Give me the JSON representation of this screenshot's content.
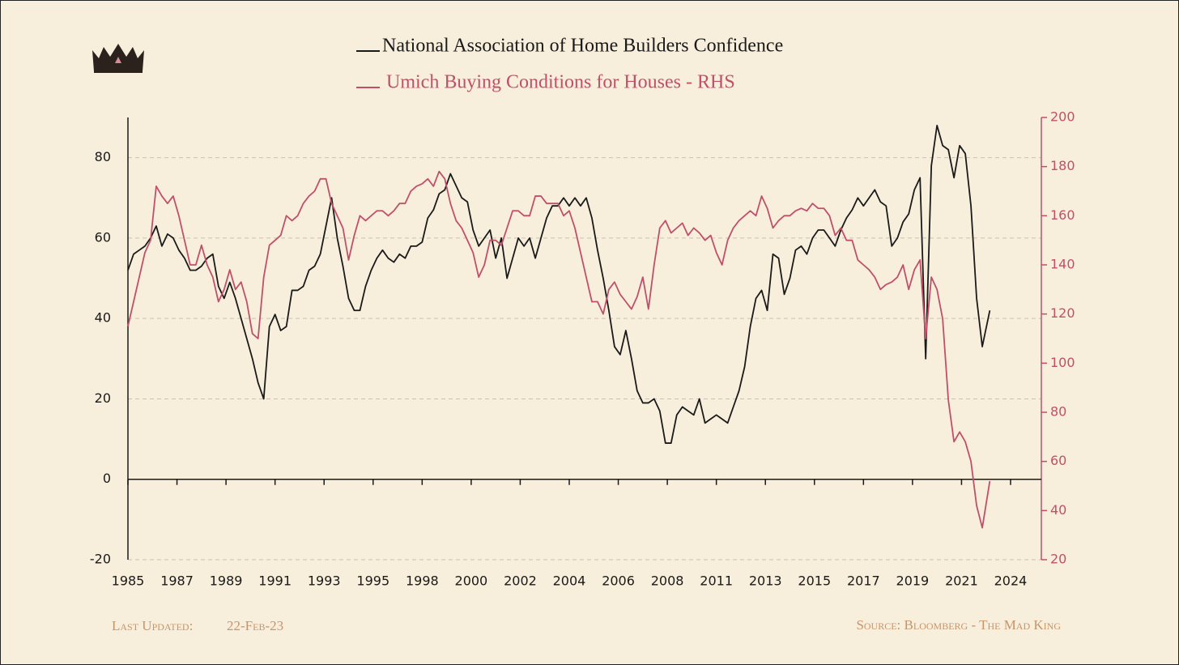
{
  "chart_data": {
    "type": "line",
    "x": [
      1985,
      1985.25,
      1985.5,
      1985.75,
      1986,
      1986.25,
      1986.5,
      1986.75,
      1987,
      1987.25,
      1987.5,
      1987.75,
      1988,
      1988.25,
      1988.5,
      1988.75,
      1989,
      1989.25,
      1989.5,
      1989.75,
      1990,
      1990.25,
      1990.5,
      1990.75,
      1991,
      1991.25,
      1991.5,
      1991.75,
      1992,
      1992.25,
      1992.5,
      1992.75,
      1993,
      1993.25,
      1993.5,
      1993.75,
      1994,
      1994.25,
      1994.5,
      1994.75,
      1995,
      1995.25,
      1995.5,
      1995.75,
      1996,
      1996.25,
      1996.5,
      1996.75,
      1997,
      1997.25,
      1997.5,
      1997.75,
      1998,
      1998.25,
      1998.5,
      1998.75,
      1999,
      1999.25,
      1999.5,
      1999.75,
      2000,
      2000.25,
      2000.5,
      2000.75,
      2001,
      2001.25,
      2001.5,
      2001.75,
      2002,
      2002.25,
      2002.5,
      2002.75,
      2003,
      2003.25,
      2003.5,
      2003.75,
      2004,
      2004.25,
      2004.5,
      2004.75,
      2005,
      2005.25,
      2005.5,
      2005.75,
      2006,
      2006.25,
      2006.5,
      2006.75,
      2007,
      2007.25,
      2007.5,
      2007.75,
      2008,
      2008.25,
      2008.5,
      2008.75,
      2009,
      2009.25,
      2009.5,
      2009.75,
      2010,
      2010.25,
      2010.5,
      2010.75,
      2011,
      2011.25,
      2011.5,
      2011.75,
      2012,
      2012.25,
      2012.5,
      2012.75,
      2013,
      2013.25,
      2013.5,
      2013.75,
      2014,
      2014.25,
      2014.5,
      2014.75,
      2015,
      2015.25,
      2015.5,
      2015.75,
      2016,
      2016.25,
      2016.5,
      2016.75,
      2017,
      2017.25,
      2017.5,
      2017.75,
      2018,
      2018.25,
      2018.5,
      2018.75,
      2019,
      2019.25,
      2019.5,
      2019.75,
      2020,
      2020.25,
      2020.5,
      2020.75,
      2021,
      2021.25,
      2021.5,
      2021.75,
      2022,
      2022.25,
      2022.5,
      2022.75,
      2023.083
    ],
    "series": [
      {
        "name": "National Association of Home Builders Confidence",
        "color": "#1a1a1a",
        "axis": "y",
        "values": [
          52,
          56,
          57,
          58,
          60,
          63,
          58,
          61,
          60,
          57,
          55,
          52,
          52,
          53,
          55,
          56,
          48,
          45,
          49,
          45,
          40,
          35,
          30,
          24,
          20,
          38,
          41,
          37,
          38,
          47,
          47,
          48,
          52,
          53,
          56,
          63,
          70,
          60,
          53,
          45,
          42,
          42,
          48,
          52,
          55,
          57,
          55,
          54,
          56,
          55,
          58,
          58,
          59,
          65,
          67,
          71,
          72,
          76,
          73,
          70,
          69,
          62,
          58,
          60,
          62,
          55,
          60,
          50,
          55,
          60,
          58,
          60,
          55,
          60,
          65,
          68,
          68,
          70,
          68,
          70,
          68,
          70,
          65,
          57,
          50,
          42,
          33,
          31,
          37,
          30,
          22,
          19,
          19,
          20,
          17,
          9,
          9,
          16,
          18,
          17,
          16,
          20,
          14,
          15,
          16,
          15,
          14,
          18,
          22,
          28,
          38,
          45,
          47,
          42,
          56,
          55,
          46,
          50,
          57,
          58,
          56,
          60,
          62,
          62,
          60,
          58,
          62,
          65,
          67,
          70,
          68,
          70,
          72,
          69,
          68,
          58,
          60,
          64,
          66,
          72,
          75,
          30,
          78,
          88,
          83,
          82,
          75,
          83,
          81,
          68,
          45,
          33,
          42
        ]
      },
      {
        "name": "Umich Buying Conditions for Houses - RHS",
        "color": "#c0506a",
        "axis": "y2",
        "values": [
          115,
          125,
          135,
          145,
          150,
          172,
          168,
          165,
          168,
          160,
          150,
          140,
          140,
          148,
          140,
          135,
          125,
          130,
          138,
          130,
          133,
          125,
          112,
          110,
          135,
          148,
          150,
          152,
          160,
          158,
          160,
          165,
          168,
          170,
          175,
          175,
          165,
          160,
          155,
          142,
          152,
          160,
          158,
          160,
          162,
          162,
          160,
          162,
          165,
          165,
          170,
          172,
          173,
          175,
          172,
          178,
          175,
          165,
          158,
          155,
          150,
          145,
          135,
          140,
          150,
          150,
          148,
          155,
          162,
          162,
          160,
          160,
          168,
          168,
          165,
          165,
          165,
          160,
          162,
          155,
          145,
          135,
          125,
          125,
          120,
          130,
          133,
          128,
          125,
          122,
          127,
          135,
          122,
          140,
          155,
          158,
          153,
          155,
          157,
          152,
          155,
          153,
          150,
          152,
          145,
          140,
          150,
          155,
          158,
          160,
          162,
          160,
          168,
          163,
          155,
          158,
          160,
          160,
          162,
          163,
          162,
          165,
          163,
          163,
          160,
          152,
          155,
          150,
          150,
          142,
          140,
          138,
          135,
          130,
          132,
          133,
          135,
          140,
          130,
          138,
          142,
          110,
          135,
          130,
          118,
          85,
          68,
          72,
          68,
          60,
          42,
          33,
          52
        ]
      }
    ],
    "xlim": [
      1985,
      2025.36
    ],
    "xticks": [
      1985,
      {
        "value": 1987.1667,
        "label": "1987"
      },
      {
        "value": 1989.3333,
        "label": "1989"
      },
      {
        "value": 1991.5,
        "label": "1991"
      },
      {
        "value": 1993.6667,
        "label": "1993"
      },
      {
        "value": 1995.8333,
        "label": "1995"
      },
      1998,
      {
        "value": 2000.1667,
        "label": "2000"
      },
      {
        "value": 2002.3333,
        "label": "2002"
      },
      {
        "value": 2004.5,
        "label": "2004"
      },
      {
        "value": 2006.6667,
        "label": "2006"
      },
      {
        "value": 2008.8333,
        "label": "2008"
      },
      2011,
      {
        "value": 2013.1667,
        "label": "2013"
      },
      {
        "value": 2015.3333,
        "label": "2015"
      },
      {
        "value": 2017.5,
        "label": "2017"
      },
      {
        "value": 2019.6667,
        "label": "2019"
      },
      {
        "value": 2021.8333,
        "label": "2021"
      },
      2024
    ],
    "ylim": [
      -20,
      90
    ],
    "yticks": [
      -20,
      0,
      20,
      40,
      60,
      80
    ],
    "y2lim": [
      20,
      200
    ],
    "y2ticks": [
      20,
      40,
      60,
      80,
      100,
      120,
      140,
      160,
      180,
      200
    ],
    "grid": true,
    "updated_label": "Last Updated:",
    "updated": "22-Feb-23",
    "source": "Source: Bloomberg - The Mad King"
  }
}
